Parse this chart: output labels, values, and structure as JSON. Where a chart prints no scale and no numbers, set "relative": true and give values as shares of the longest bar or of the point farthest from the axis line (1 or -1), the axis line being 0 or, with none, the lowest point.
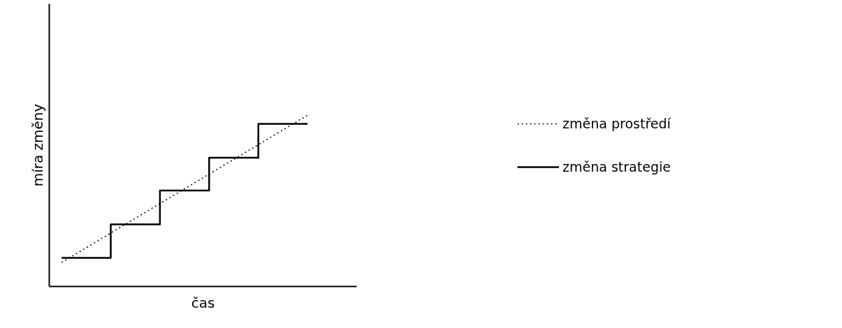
{
  "chart_data": {
    "type": "step",
    "relative": true,
    "xlabel": "čas",
    "ylabel": "míra změny",
    "categories": [
      null,
      null,
      null,
      null,
      null,
      null
    ],
    "series": [
      {
        "name": "změna prostředí",
        "type": "line",
        "color": "#000000",
        "line_style": "dotted",
        "values": [
          0.14,
          0.312,
          0.484,
          0.656,
          0.828,
          1.0
        ]
      },
      {
        "name": "změna strategie",
        "color": "#000000",
        "line_style": "solid",
        "values": [
          0.167,
          0.363,
          0.56,
          0.752,
          0.949,
          0.949
        ]
      }
    ],
    "grid": false,
    "legend": "right",
    "marker": "none"
  }
}
